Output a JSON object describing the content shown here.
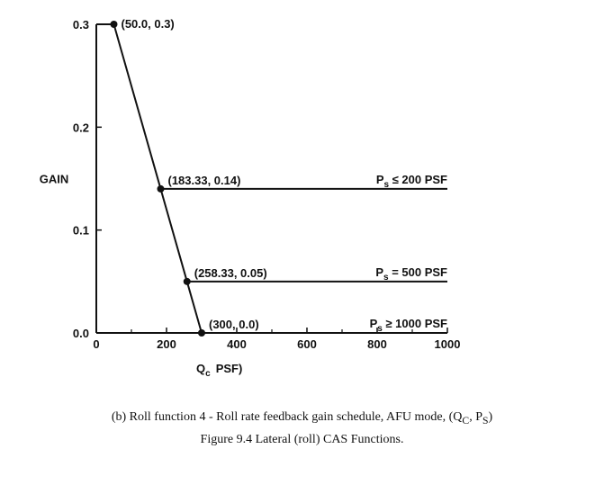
{
  "chart_data": {
    "type": "line",
    "ylabel": "GAIN",
    "xlabel": "Q",
    "xlabel_sub": "c",
    "xlabel_unit": "PSF)",
    "xlim": [
      0,
      1000
    ],
    "ylim": [
      0.0,
      0.3
    ],
    "xticks": [
      0,
      200,
      400,
      600,
      800,
      1000
    ],
    "yticks": [
      0.0,
      0.1,
      0.2,
      0.3
    ],
    "xtick_labels": [
      "0",
      "200",
      "400",
      "600",
      "800",
      "1000"
    ],
    "ytick_labels": [
      "0.0",
      "0.1",
      "0.2",
      "0.3"
    ],
    "grid": false,
    "series": [
      {
        "values": [
          [
            0,
            0.3
          ],
          [
            50,
            0.3
          ]
        ]
      },
      {
        "values": [
          [
            50,
            0.3
          ],
          [
            183.33,
            0.14
          ],
          [
            258.33,
            0.05
          ],
          [
            300,
            0.0
          ]
        ]
      },
      {
        "name": "P_s ≤ 200 PSF",
        "values": [
          [
            183.33,
            0.14
          ],
          [
            1000,
            0.14
          ]
        ]
      },
      {
        "name": "P_s = 500 PSF",
        "values": [
          [
            258.33,
            0.05
          ],
          [
            1000,
            0.05
          ]
        ]
      },
      {
        "name": "P_s ≥ 1000 PSF",
        "values": [
          [
            300,
            0.0
          ],
          [
            1000,
            0.0
          ]
        ]
      }
    ],
    "series_labels": [
      {
        "base": "P",
        "sub": "s",
        "rest": " ≤ 200 PSF",
        "y": 0.14
      },
      {
        "base": "P",
        "sub": "s",
        "rest": " = 500 PSF",
        "y": 0.05
      },
      {
        "base": "P",
        "sub": "s",
        "rest": " ≥ 1000 PSF",
        "y": 0.0
      }
    ],
    "points": [
      {
        "x": 50,
        "y": 0.3,
        "label": "(50.0, 0.3)"
      },
      {
        "x": 183.33,
        "y": 0.14,
        "label": "(183.33, 0.14)"
      },
      {
        "x": 258.33,
        "y": 0.05,
        "label": "(258.33, 0.05)"
      },
      {
        "x": 300,
        "y": 0.0,
        "label": "(300, 0.0)"
      }
    ]
  },
  "caption": {
    "line1": "(b) Roll function 4 - Roll rate feedback gain schedule, AFU mode, (Q",
    "line1_sub1": "C",
    "line1_mid": ", P",
    "line1_sub2": "S",
    "line1_end": ")",
    "line2": "Figure 9.4 Lateral (roll) CAS Functions."
  }
}
